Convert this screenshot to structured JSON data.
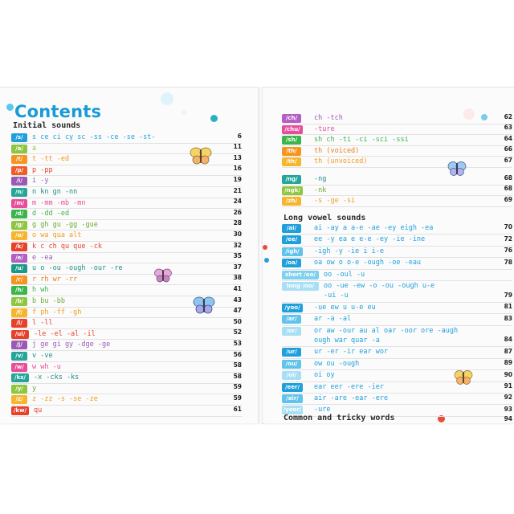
{
  "title": "Contents",
  "left_heading": "Initial sounds",
  "left_rows": [
    {
      "tag": "/s/",
      "tag_color": "#1fa0dc",
      "spellings": "s  ce  ci  cy  sc  -ss  -ce  -se  -st-",
      "color": "#1fa0dc",
      "page": "6"
    },
    {
      "tag": "/a/",
      "tag_color": "#8cc63f",
      "spellings": "a",
      "color": "#8cc63f",
      "page": "11"
    },
    {
      "tag": "/t/",
      "tag_color": "#f7941d",
      "spellings": "t  -tt  -ed",
      "color": "#f7941d",
      "page": "13"
    },
    {
      "tag": "/p/",
      "tag_color": "#f15a29",
      "spellings": "p  -pp",
      "color": "#e8412a",
      "page": "16"
    },
    {
      "tag": "/i/",
      "tag_color": "#9b59b6",
      "spellings": "i  -y",
      "color": "#9b59b6",
      "page": "19"
    },
    {
      "tag": "/n/",
      "tag_color": "#26a69a",
      "spellings": "n  kn  gn  -nn",
      "color": "#1a8f84",
      "page": "21"
    },
    {
      "tag": "/m/",
      "tag_color": "#e84d9a",
      "spellings": "m  -mm  -mb  -mn",
      "color": "#e84d9a",
      "page": "24"
    },
    {
      "tag": "/d/",
      "tag_color": "#39b54a",
      "spellings": "d  -dd  -ed",
      "color": "#39b54a",
      "page": "26"
    },
    {
      "tag": "/g/",
      "tag_color": "#8dc63f",
      "spellings": "g  gh  gu  -gg  -gue",
      "color": "#6aab2e",
      "page": "28"
    },
    {
      "tag": "/o/",
      "tag_color": "#f7b52c",
      "spellings": "o  wa  qua  alt",
      "color": "#f29b1d",
      "page": "30"
    },
    {
      "tag": "/k/",
      "tag_color": "#e8412a",
      "spellings": "k  c  ch  qu  que  -ck",
      "color": "#e8412a",
      "page": "32"
    },
    {
      "tag": "/e/",
      "tag_color": "#b35fc4",
      "spellings": "e  -ea",
      "color": "#9b59b6",
      "page": "35"
    },
    {
      "tag": "/u/",
      "tag_color": "#1a9988",
      "spellings": "u  o  -ou  -ough  -our  -re",
      "color": "#1a8f84",
      "page": "37"
    },
    {
      "tag": "/r/",
      "tag_color": "#f7941d",
      "spellings": "r  rh  wr  -rr",
      "color": "#e87d1d",
      "page": "38"
    },
    {
      "tag": "/h/",
      "tag_color": "#39b54a",
      "spellings": "h  wh",
      "color": "#39b54a",
      "page": "41"
    },
    {
      "tag": "/b/",
      "tag_color": "#8dc63f",
      "spellings": "b  bu  -bb",
      "color": "#6aab2e",
      "page": "43"
    },
    {
      "tag": "/f/",
      "tag_color": "#f7b52c",
      "spellings": "f  ph  -ff  -gh",
      "color": "#f29b1d",
      "page": "47"
    },
    {
      "tag": "/l/",
      "tag_color": "#e8412a",
      "spellings": "l  -ll",
      "color": "#e8412a",
      "page": "50"
    },
    {
      "tag": "/ul/",
      "tag_color": "#e8412a",
      "spellings": "-le  -el  -al  -il",
      "color": "#e8412a",
      "page": "52"
    },
    {
      "tag": "/j/",
      "tag_color": "#9b59b6",
      "spellings": "j  ge  gi  gy  -dge  -ge",
      "color": "#9b59b6",
      "page": "53"
    },
    {
      "tag": "/v/",
      "tag_color": "#26a69a",
      "spellings": "v  -ve",
      "color": "#1a8f84",
      "page": "56"
    },
    {
      "tag": "/w/",
      "tag_color": "#e84d9a",
      "spellings": "w  wh  -u",
      "color": "#e84d9a",
      "page": "58"
    },
    {
      "tag": "/ks/",
      "tag_color": "#26a69a",
      "spellings": "-x  -cks  -ks",
      "color": "#1a8f84",
      "page": "58"
    },
    {
      "tag": "/y/",
      "tag_color": "#8dc63f",
      "spellings": "y",
      "color": "#6aab2e",
      "page": "59"
    },
    {
      "tag": "/z/",
      "tag_color": "#f7b52c",
      "spellings": "z  -zz  -s  -se  -ze",
      "color": "#f29b1d",
      "page": "59"
    },
    {
      "tag": "/kw/",
      "tag_color": "#e8412a",
      "spellings": "qu",
      "color": "#e8412a",
      "page": "61"
    }
  ],
  "right_rows_top": [
    {
      "tag": "/ch/",
      "tag_color": "#b35fc4",
      "spellings": "ch  -tch",
      "color": "#9b59b6",
      "page": "62"
    },
    {
      "tag": "/chu/",
      "tag_color": "#e84d9a",
      "spellings": "-ture",
      "color": "#e84d9a",
      "page": "63"
    },
    {
      "tag": "/sh/",
      "tag_color": "#39b54a",
      "spellings": "sh  ch  -ti  -ci  -sci  -ssi",
      "color": "#39b54a",
      "page": "64"
    },
    {
      "tag": "/th/",
      "tag_color": "#f7941d",
      "spellings": "th (voiced)",
      "color": "#e87d1d",
      "page": "66"
    },
    {
      "tag": "/th/",
      "tag_color": "#f7b52c",
      "spellings": "th (unvoiced)",
      "color": "#f29b1d",
      "page": "67"
    }
  ],
  "right_rows_mid": [
    {
      "tag": "/ng/",
      "tag_color": "#26a69a",
      "spellings": "-ng",
      "color": "#1a8f84",
      "page": "68"
    },
    {
      "tag": "/ngk/",
      "tag_color": "#8dc63f",
      "spellings": "-nk",
      "color": "#6aab2e",
      "page": "68"
    },
    {
      "tag": "/zh/",
      "tag_color": "#f7b52c",
      "spellings": "-s  -ge  -si",
      "color": "#f29b1d",
      "page": "69"
    }
  ],
  "right_heading": "Long vowel sounds",
  "right_rows_vowels": [
    {
      "tag": "/ai/",
      "tag_color": "#1fa0dc",
      "spellings": "ai  -ay  a  a-e  -ae  -ey  eigh  -ea",
      "color": "#1fa0dc",
      "page": "70"
    },
    {
      "tag": "/ee/",
      "tag_color": "#1fa0dc",
      "spellings": "ee  -y  ea  e  e-e  -ey  -ie  -ine",
      "color": "#1fa0dc",
      "page": "72"
    },
    {
      "tag": "/igh/",
      "tag_color": "#5fc3ec",
      "spellings": "-igh  -y  -ie  i  i-e",
      "color": "#1fa0dc",
      "page": "76"
    },
    {
      "tag": "/oa/",
      "tag_color": "#1fa0dc",
      "spellings": "oa  ow  o  o-e  -ough  -oe  -eau",
      "color": "#1fa0dc",
      "page": "78"
    },
    {
      "tag": "short /oo/",
      "tag_color": "#7fd0ef",
      "spellings": "oo  -oul  -u",
      "color": "#1fa0dc",
      "page": ""
    },
    {
      "tag": "long /oo/",
      "tag_color": "#a8dff4",
      "spellings": "oo  -ue  -ew  -o  -ou  -ough  u-e",
      "spellings2": "-ui  -u",
      "color": "#1fa0dc",
      "page": "79"
    },
    {
      "tag": "/yoo/",
      "tag_color": "#1fa0dc",
      "spellings": "-ue  ew  u  u-e  eu",
      "color": "#1fa0dc",
      "page": "81"
    },
    {
      "tag": "/ar/",
      "tag_color": "#5fc3ec",
      "spellings": "ar  -a  -al",
      "color": "#1fa0dc",
      "page": "83"
    },
    {
      "tag": "/or/",
      "tag_color": "#a8dff4",
      "spellings": "or  aw  -our  au  al  oar  -oor  ore  -augh",
      "spellings2": "ough  war  quar  -a",
      "color": "#1fa0dc",
      "page": "84"
    },
    {
      "tag": "/ur/",
      "tag_color": "#1fa0dc",
      "spellings": "ur  -er  -ir  ear  wor",
      "color": "#1fa0dc",
      "page": "87"
    },
    {
      "tag": "/ou/",
      "tag_color": "#5fc3ec",
      "spellings": "ow  ou  -ough",
      "color": "#1fa0dc",
      "page": "89"
    },
    {
      "tag": "/oi/",
      "tag_color": "#a8dff4",
      "spellings": "oi  oy",
      "color": "#1fa0dc",
      "page": "90"
    },
    {
      "tag": "/eer/",
      "tag_color": "#1fa0dc",
      "spellings": "ear  eer  -ere  -ier",
      "color": "#1fa0dc",
      "page": "91"
    },
    {
      "tag": "/air/",
      "tag_color": "#5fc3ec",
      "spellings": "air  -are  -ear  -ere",
      "color": "#1fa0dc",
      "page": "92"
    },
    {
      "tag": "/yoor/",
      "tag_color": "#a8dff4",
      "spellings": "-ure",
      "color": "#1fa0dc",
      "page": "93"
    }
  ],
  "bottom_heading": "Common and tricky words",
  "bottom_page": "94"
}
